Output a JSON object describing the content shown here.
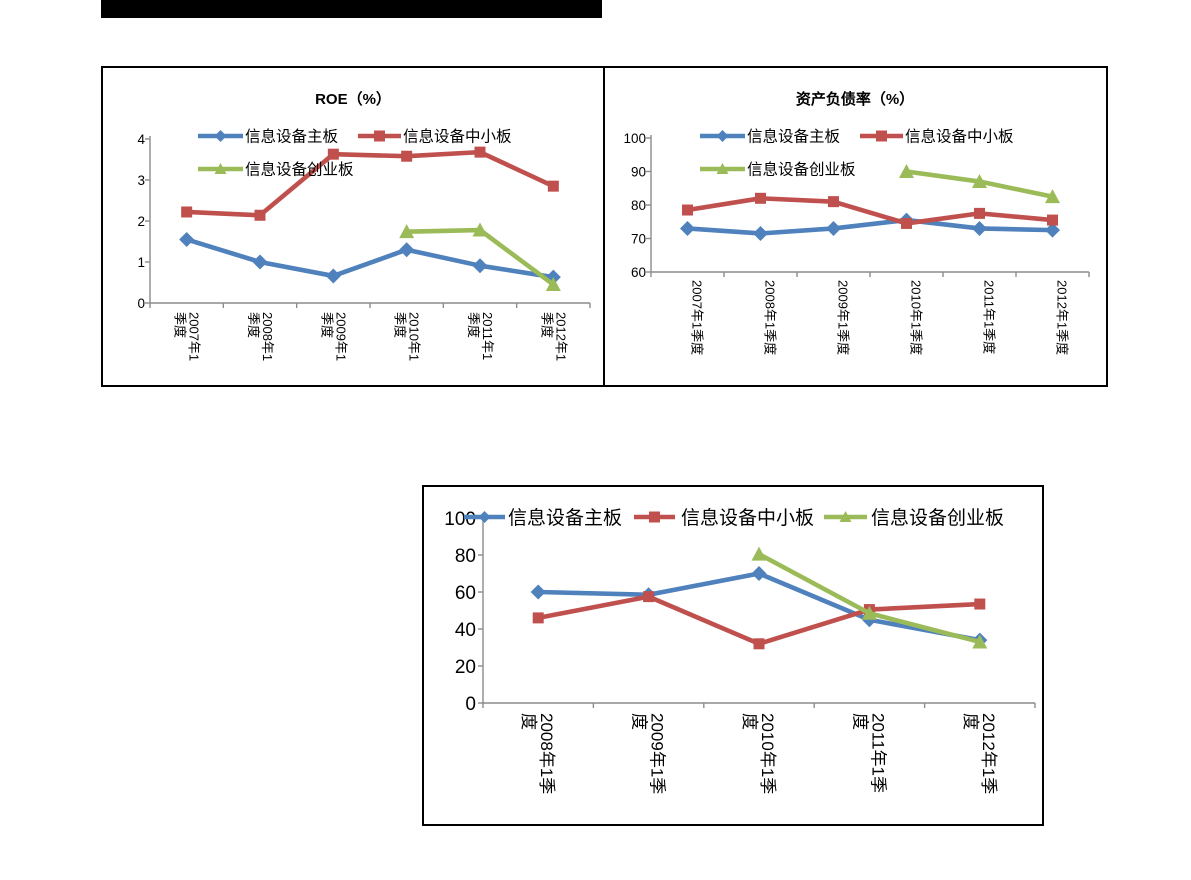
{
  "page": {
    "background_color": "#ffffff",
    "top_bar": {
      "color": "#000000"
    }
  },
  "palette": {
    "main_board_blue": "#4F81BD",
    "sme_board_red": "#C0504D",
    "gem_board_green": "#9BBB59",
    "axis_gray": "#8C8C8C",
    "text_black": "#000000"
  },
  "chart_data": [
    {
      "id": "roe",
      "type": "line",
      "title": "ROE（%）",
      "categories": [
        "2007年1季度",
        "2008年1季度",
        "2009年1季度",
        "2010年1季度",
        "2011年1季度",
        "2012年1季度"
      ],
      "tick_label_lines": [
        [
          "2007年1",
          "季度"
        ],
        [
          "2008年1",
          "季度"
        ],
        [
          "2009年1",
          "季度"
        ],
        [
          "2010年1",
          "季度"
        ],
        [
          "2011年1",
          "季度"
        ],
        [
          "2012年1",
          "季度"
        ]
      ],
      "ylim": [
        0,
        4
      ],
      "yticks": [
        0,
        1,
        2,
        3,
        4
      ],
      "grid": false,
      "legend_position": "inside-top-two-rows",
      "series": [
        {
          "name": "信息设备主板",
          "color": "#4F81BD",
          "marker": "diamond",
          "values": [
            1.55,
            1.0,
            0.66,
            1.3,
            0.91,
            0.63
          ]
        },
        {
          "name": "信息设备中小板",
          "color": "#C0504D",
          "marker": "square",
          "values": [
            2.22,
            2.14,
            3.63,
            3.58,
            3.68,
            2.85
          ]
        },
        {
          "name": "信息设备创业板",
          "color": "#9BBB59",
          "marker": "triangle",
          "values": [
            null,
            null,
            null,
            1.74,
            1.78,
            0.45
          ]
        }
      ]
    },
    {
      "id": "debt",
      "type": "line",
      "title": "资产负债率（%）",
      "categories": [
        "2007年1季度",
        "2008年1季度",
        "2009年1季度",
        "2010年1季度",
        "2011年1季度",
        "2012年1季度"
      ],
      "tick_label_lines": [
        [
          "2007年1季度"
        ],
        [
          "2008年1季度"
        ],
        [
          "2009年1季度"
        ],
        [
          "2010年1季度"
        ],
        [
          "2011年1季度"
        ],
        [
          "2012年1季度"
        ]
      ],
      "ylim": [
        60,
        100
      ],
      "yticks": [
        60,
        70,
        80,
        90,
        100
      ],
      "grid": false,
      "legend_position": "inside-top-two-rows",
      "series": [
        {
          "name": "信息设备主板",
          "color": "#4F81BD",
          "marker": "diamond",
          "values": [
            73,
            71.5,
            73,
            75.5,
            73,
            72.5
          ]
        },
        {
          "name": "信息设备中小板",
          "color": "#C0504D",
          "marker": "square",
          "values": [
            78.5,
            82,
            81,
            74.5,
            77.5,
            75.5
          ]
        },
        {
          "name": "信息设备创业板",
          "color": "#9BBB59",
          "marker": "triangle",
          "values": [
            null,
            null,
            null,
            90,
            87,
            82.5
          ]
        }
      ]
    },
    {
      "id": "growth",
      "type": "line",
      "title": "",
      "categories": [
        "2008年1季度",
        "2009年1季度",
        "2010年1季度",
        "2011年1季度",
        "2012年1季度"
      ],
      "tick_label_lines": [
        [
          "2008年1季",
          "度"
        ],
        [
          "2009年1季",
          "度"
        ],
        [
          "2010年1季",
          "度"
        ],
        [
          "2011年1季",
          "度"
        ],
        [
          "2012年1季",
          "度"
        ]
      ],
      "ylim": [
        0,
        100
      ],
      "yticks": [
        0,
        20,
        40,
        60,
        80,
        100
      ],
      "grid": false,
      "legend_position": "top-row",
      "series": [
        {
          "name": "信息设备主板",
          "color": "#4F81BD",
          "marker": "diamond",
          "values": [
            60,
            58.5,
            70,
            45,
            34
          ]
        },
        {
          "name": "信息设备中小板",
          "color": "#C0504D",
          "marker": "square",
          "values": [
            46,
            57.5,
            32,
            50.5,
            53.5
          ]
        },
        {
          "name": "信息设备创业板",
          "color": "#9BBB59",
          "marker": "triangle",
          "values": [
            null,
            null,
            80.5,
            48.5,
            33
          ]
        }
      ]
    }
  ]
}
